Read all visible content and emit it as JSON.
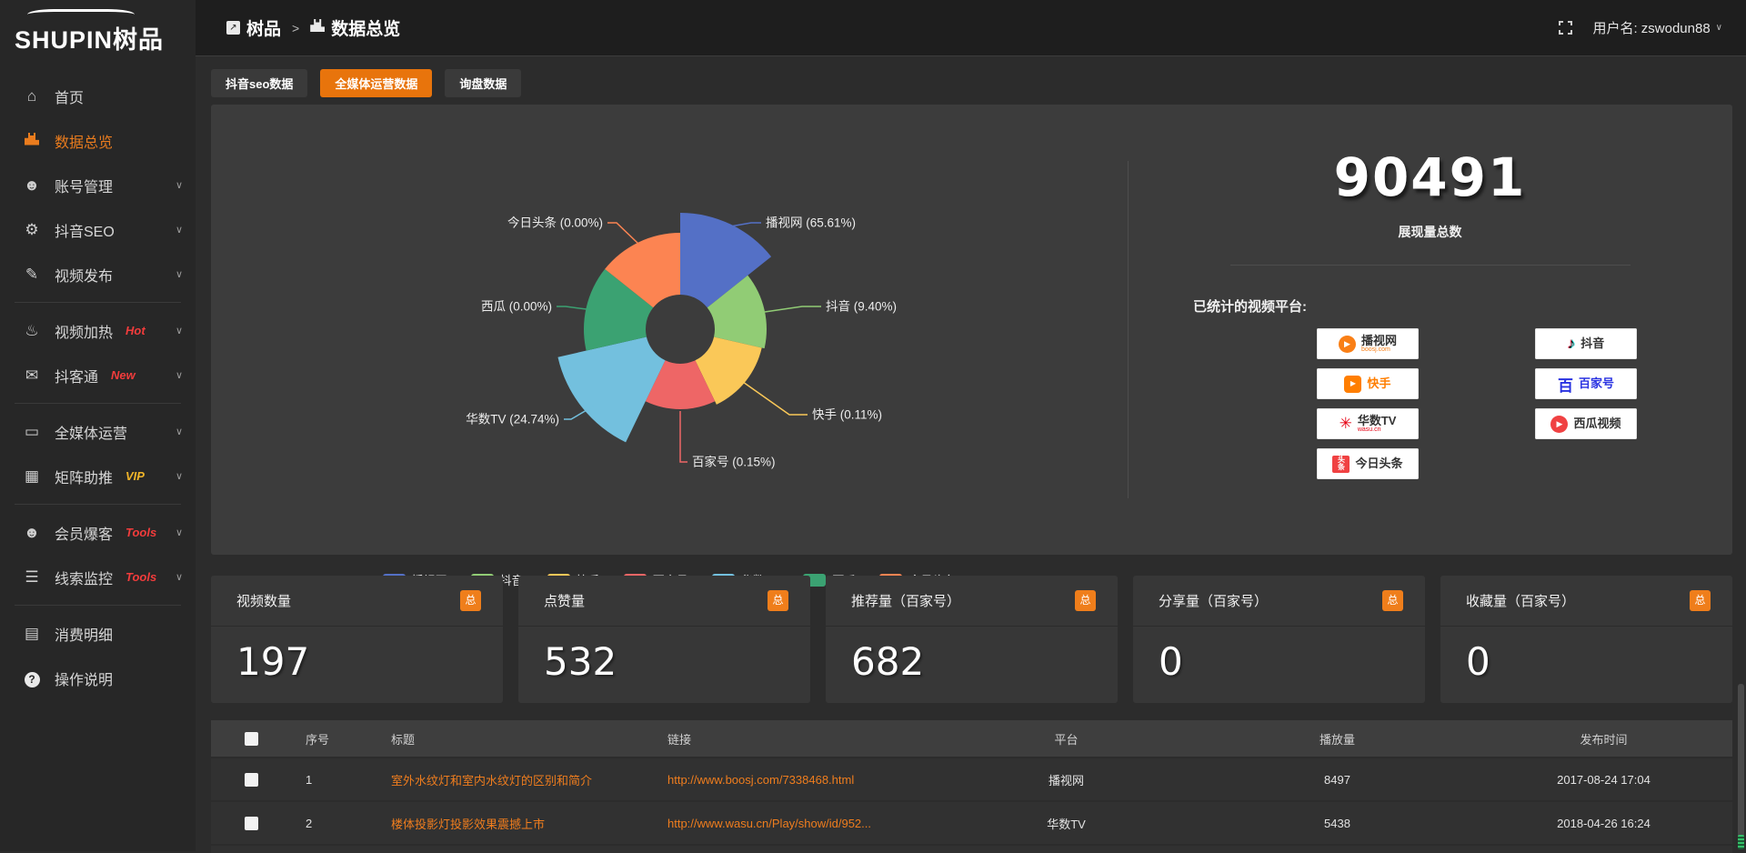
{
  "app": {
    "logo_text": "SHUPIN树品"
  },
  "topbar": {
    "breadcrumb": [
      {
        "label": "树品"
      },
      {
        "label": "数据总览"
      }
    ],
    "username_label": "用户名: zswodun88"
  },
  "sidebar": {
    "items": [
      {
        "icon": "home",
        "label": "首页",
        "badge": "",
        "chevron": false,
        "active": false,
        "divider_after": false
      },
      {
        "icon": "bar-chart",
        "label": "数据总览",
        "badge": "",
        "chevron": false,
        "active": true,
        "divider_after": false
      },
      {
        "icon": "user",
        "label": "账号管理",
        "badge": "",
        "chevron": true,
        "active": false,
        "divider_after": false
      },
      {
        "icon": "gear",
        "label": "抖音SEO",
        "badge": "",
        "chevron": true,
        "active": false,
        "divider_after": false
      },
      {
        "icon": "publish",
        "label": "视频发布",
        "badge": "",
        "chevron": true,
        "active": false,
        "divider_after": true
      },
      {
        "icon": "heat",
        "label": "视频加热",
        "badge": "Hot",
        "chevron": true,
        "active": false,
        "divider_after": false
      },
      {
        "icon": "message",
        "label": "抖客通",
        "badge": "New",
        "chevron": true,
        "active": false,
        "divider_after": true
      },
      {
        "icon": "monitor",
        "label": "全媒体运营",
        "badge": "",
        "chevron": true,
        "active": false,
        "divider_after": false
      },
      {
        "icon": "grid",
        "label": "矩阵助推",
        "badge": "VIP",
        "chevron": true,
        "active": false,
        "divider_after": true
      },
      {
        "icon": "person",
        "label": "会员爆客",
        "badge": "Tools",
        "chevron": true,
        "active": false,
        "divider_after": false
      },
      {
        "icon": "filter",
        "label": "线索监控",
        "badge": "Tools",
        "chevron": true,
        "active": false,
        "divider_after": true
      },
      {
        "icon": "wallet",
        "label": "消费明细",
        "badge": "",
        "chevron": false,
        "active": false,
        "divider_after": false
      },
      {
        "icon": "question",
        "label": "操作说明",
        "badge": "",
        "chevron": false,
        "active": false,
        "divider_after": false
      }
    ]
  },
  "tabs": [
    {
      "label": "抖音seo数据",
      "active": false
    },
    {
      "label": "全媒体运营数据",
      "active": true
    },
    {
      "label": "询盘数据",
      "active": false
    }
  ],
  "chart_data": {
    "type": "pie",
    "style": "nightingale-rose",
    "title": "",
    "legend_position": "bottom",
    "slices": [
      {
        "name": "播视网",
        "value": 65.61,
        "pct": "65.61",
        "color": "#5470c6",
        "radius": 128
      },
      {
        "name": "抖音",
        "value": 9.4,
        "pct": "9.40",
        "color": "#91cc75",
        "radius": 95
      },
      {
        "name": "快手",
        "value": 0.11,
        "pct": "0.11",
        "color": "#fac858",
        "radius": 92
      },
      {
        "name": "百家号",
        "value": 0.15,
        "pct": "0.15",
        "color": "#ee6666",
        "radius": 88
      },
      {
        "name": "华数TV",
        "value": 24.74,
        "pct": "24.74",
        "color": "#73c0de",
        "radius": 138
      },
      {
        "name": "西瓜",
        "value": 0.0,
        "pct": "0.00",
        "color": "#3ba272",
        "radius": 106
      },
      {
        "name": "今日头条",
        "value": 0.0,
        "pct": "0.00",
        "color": "#fc8452",
        "radius": 106
      }
    ]
  },
  "summary": {
    "total_value": "90491",
    "total_caption": "展现量总数",
    "platforms_title": "已统计的视频平台:",
    "platforms": [
      {
        "type": "boosj",
        "name": "播视网",
        "sub": "boosj.com",
        "color": "#f97f16"
      },
      {
        "type": "douyin",
        "name": "抖音",
        "sub": "",
        "color": "#111111"
      },
      {
        "type": "kuaishou",
        "name": "快手",
        "sub": "",
        "color": "#ff7e00"
      },
      {
        "type": "baijiahao",
        "name": "百家号",
        "sub": "",
        "color": "#2932e1"
      },
      {
        "type": "wasu",
        "name": "华数TV",
        "sub": "wasu.cn",
        "color": "#e60012"
      },
      {
        "type": "xigua",
        "name": "西瓜视频",
        "sub": "",
        "color": "#f04142"
      },
      {
        "type": "toutiao",
        "name": "今日头条",
        "sub": "",
        "color": "#f04142"
      }
    ]
  },
  "stat_cards": [
    {
      "label": "视频数量",
      "badge": "总",
      "value": "197"
    },
    {
      "label": "点赞量",
      "badge": "总",
      "value": "532"
    },
    {
      "label": "推荐量（百家号）",
      "badge": "总",
      "value": "682"
    },
    {
      "label": "分享量（百家号）",
      "badge": "总",
      "value": "0"
    },
    {
      "label": "收藏量（百家号）",
      "badge": "总",
      "value": "0"
    }
  ],
  "table": {
    "headers": [
      "",
      "序号",
      "标题",
      "链接",
      "平台",
      "播放量",
      "发布时间"
    ],
    "rows": [
      {
        "num": "1",
        "title": "室外水纹灯和室内水纹灯的区别和简介",
        "link": "http://www.boosj.com/7338468.html",
        "platform": "播视网",
        "plays": "8497",
        "time": "2017-08-24 17:04"
      },
      {
        "num": "2",
        "title": "楼体投影灯投影效果震撼上市",
        "link": "http://www.wasu.cn/Play/show/id/952...",
        "platform": "华数TV",
        "plays": "5438",
        "time": "2018-04-26 16:24"
      }
    ]
  },
  "colors": {
    "accent_orange": "#e8740c",
    "link_orange": "#ef7d1e",
    "badge_red": "#f23c3c",
    "vip_gold": "#f0b429"
  }
}
